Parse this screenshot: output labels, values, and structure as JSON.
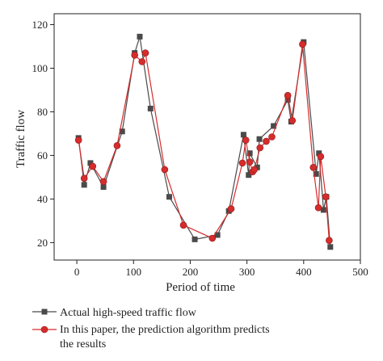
{
  "chart_data": {
    "type": "line",
    "title": "",
    "xlabel": "Period of time",
    "ylabel": "Traffic flow",
    "xlim": [
      -40,
      500
    ],
    "ylim": [
      12,
      125
    ],
    "xticks": [
      0,
      100,
      200,
      300,
      400,
      500
    ],
    "yticks": [
      20,
      40,
      60,
      80,
      100,
      120
    ],
    "grid": false,
    "legend_position": "bottom",
    "series": [
      {
        "name": "Actual high-speed traffic flow",
        "color": "#4a4a4a",
        "marker": "square",
        "points": [
          [
            3,
            68
          ],
          [
            13,
            46.5
          ],
          [
            24,
            56.5
          ],
          [
            47,
            45.5
          ],
          [
            80,
            71
          ],
          [
            102,
            107
          ],
          [
            111,
            114.5
          ],
          [
            130,
            81.5
          ],
          [
            163,
            41
          ],
          [
            208,
            21.5
          ],
          [
            248,
            23.5
          ],
          [
            268,
            34.5
          ],
          [
            294,
            69.5
          ],
          [
            303,
            51
          ],
          [
            305,
            61
          ],
          [
            318,
            54.5
          ],
          [
            322,
            67.5
          ],
          [
            347,
            73.5
          ],
          [
            372,
            85.5
          ],
          [
            378,
            75.5
          ],
          [
            400,
            112
          ],
          [
            422,
            51.5
          ],
          [
            427,
            61
          ],
          [
            435,
            35
          ],
          [
            440,
            41
          ],
          [
            447,
            18
          ]
        ]
      },
      {
        "name": "In this paper, the prediction algorithm predicts the results",
        "color": "#d62c2c",
        "marker": "circle",
        "points": [
          [
            3,
            67
          ],
          [
            13,
            49.5
          ],
          [
            28,
            55
          ],
          [
            47,
            48
          ],
          [
            71,
            64.5
          ],
          [
            102,
            106
          ],
          [
            115,
            103
          ],
          [
            121,
            107
          ],
          [
            155,
            53.5
          ],
          [
            188,
            28
          ],
          [
            239,
            22
          ],
          [
            272,
            35.5
          ],
          [
            292,
            56.5
          ],
          [
            298,
            67
          ],
          [
            305,
            57
          ],
          [
            310,
            52.5
          ],
          [
            313,
            53.5
          ],
          [
            323,
            63.5
          ],
          [
            334,
            66.5
          ],
          [
            344,
            68.5
          ],
          [
            372,
            87.5
          ],
          [
            380,
            76
          ],
          [
            398,
            111
          ],
          [
            417,
            54.5
          ],
          [
            426,
            36
          ],
          [
            430,
            59.5
          ],
          [
            439,
            41
          ],
          [
            445,
            21
          ]
        ]
      }
    ]
  }
}
